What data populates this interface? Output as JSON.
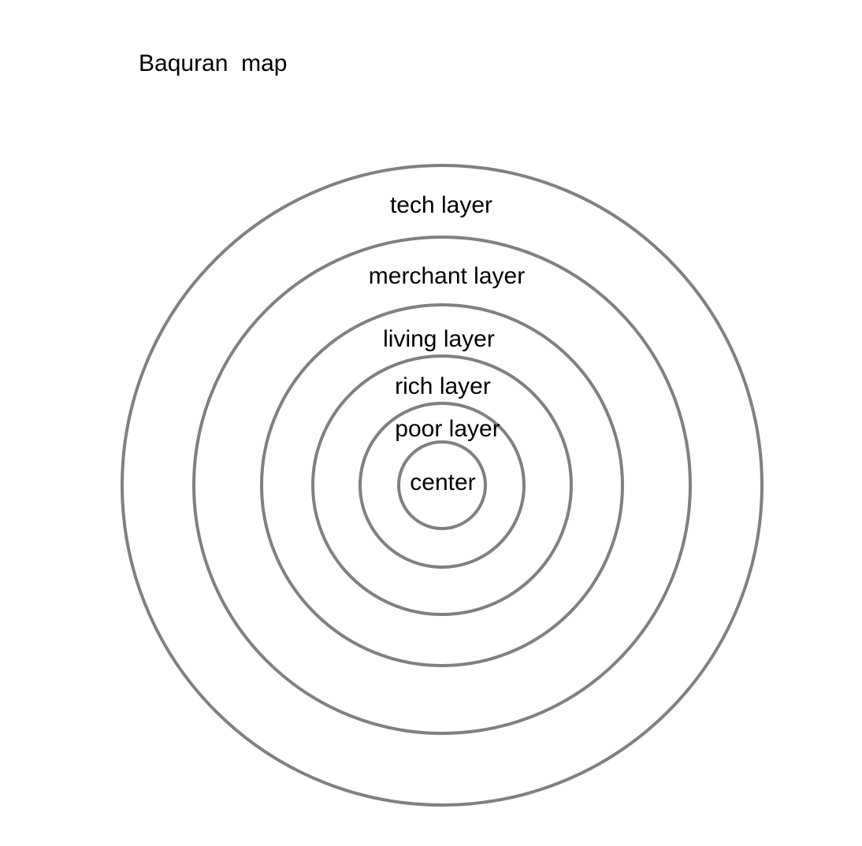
{
  "title": "Baquran  map",
  "ring_color": "#808080",
  "layers": [
    {
      "id": "tech",
      "label": "tech layer"
    },
    {
      "id": "merchant",
      "label": "merchant layer"
    },
    {
      "id": "living",
      "label": "living layer"
    },
    {
      "id": "rich",
      "label": "rich layer"
    },
    {
      "id": "poor",
      "label": "poor layer"
    },
    {
      "id": "center",
      "label": "center"
    }
  ]
}
